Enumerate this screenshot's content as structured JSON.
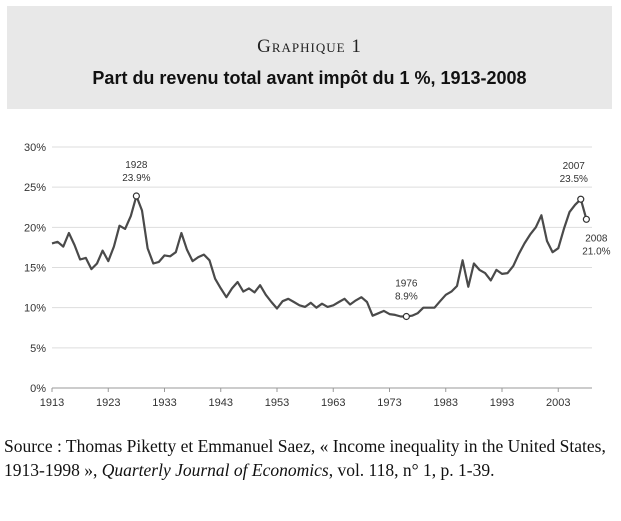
{
  "header": {
    "label": "Graphique 1",
    "title": "Part du revenu total avant impôt du 1 %, 1913-2008"
  },
  "source": {
    "prefix": "Source : Thomas Piketty et Emmanuel Saez, « Income inequality in the United States, 1913-1998 », ",
    "journal": "Quarterly Journal of Economics",
    "suffix": ", vol. 118, n° 1, p. 1-39."
  },
  "colors": {
    "line": "#4a4a4a",
    "grid": "#dddddd",
    "header_bg": "#e8e8e8"
  },
  "chart_data": {
    "type": "line",
    "title": "Part du revenu total avant impôt du 1 %, 1913-2008",
    "xlabel": "",
    "ylabel": "",
    "xlim": [
      1913,
      2009
    ],
    "ylim": [
      0,
      30
    ],
    "grid": "horizontal",
    "x_ticks": [
      "1913",
      "1923",
      "1933",
      "1943",
      "1953",
      "1963",
      "1973",
      "1983",
      "1993",
      "2003"
    ],
    "y_ticks": [
      "0%",
      "5%",
      "10%",
      "15%",
      "20%",
      "25%",
      "30%"
    ],
    "annotations": [
      {
        "x": 1928,
        "y": 23.9,
        "year": "1928",
        "value": "23.9%"
      },
      {
        "x": 1976,
        "y": 8.9,
        "year": "1976",
        "value": "8.9%"
      },
      {
        "x": 2007,
        "y": 23.5,
        "year": "2007",
        "value": "23.5%"
      },
      {
        "x": 2008,
        "y": 21.0,
        "year": "2008",
        "value": "21.0%"
      }
    ],
    "series": [
      {
        "x": [
          1913,
          1914,
          1915,
          1916,
          1917,
          1918,
          1919,
          1920,
          1921,
          1922,
          1923,
          1924,
          1925,
          1926,
          1927,
          1928,
          1929,
          1930,
          1931,
          1932,
          1933,
          1934,
          1935,
          1936,
          1937,
          1938,
          1939,
          1940,
          1941,
          1942,
          1943,
          1944,
          1945,
          1946,
          1947,
          1948,
          1949,
          1950,
          1951,
          1952,
          1953,
          1954,
          1955,
          1956,
          1957,
          1958,
          1959,
          1960,
          1961,
          1962,
          1963,
          1964,
          1965,
          1966,
          1967,
          1968,
          1969,
          1970,
          1971,
          1972,
          1973,
          1974,
          1975,
          1976,
          1977,
          1978,
          1979,
          1980,
          1981,
          1982,
          1983,
          1984,
          1985,
          1986,
          1987,
          1988,
          1989,
          1990,
          1991,
          1992,
          1993,
          1994,
          1995,
          1996,
          1997,
          1998,
          1999,
          2000,
          2001,
          2002,
          2003,
          2004,
          2005,
          2006,
          2007,
          2008
        ],
        "values": [
          18.0,
          18.2,
          17.6,
          19.3,
          17.8,
          16.0,
          16.2,
          14.8,
          15.5,
          17.1,
          15.8,
          17.6,
          20.2,
          19.8,
          21.4,
          23.9,
          22.1,
          17.4,
          15.5,
          15.7,
          16.5,
          16.4,
          16.9,
          19.3,
          17.2,
          15.8,
          16.3,
          16.6,
          15.9,
          13.6,
          12.4,
          11.3,
          12.4,
          13.2,
          12.0,
          12.4,
          11.9,
          12.8,
          11.6,
          10.7,
          9.9,
          10.8,
          11.1,
          10.7,
          10.3,
          10.1,
          10.6,
          10.0,
          10.5,
          10.1,
          10.3,
          10.7,
          11.1,
          10.4,
          10.9,
          11.3,
          10.7,
          9.0,
          9.3,
          9.6,
          9.2,
          9.1,
          8.9,
          8.9,
          9.0,
          9.3,
          10.0,
          10.0,
          10.0,
          10.8,
          11.6,
          12.0,
          12.7,
          15.9,
          12.6,
          15.5,
          14.7,
          14.3,
          13.4,
          14.7,
          14.2,
          14.3,
          15.2,
          16.7,
          18.0,
          19.1,
          20.0,
          21.5,
          18.3,
          16.9,
          17.4,
          19.8,
          21.9,
          22.8,
          23.5,
          21.0
        ]
      }
    ]
  }
}
